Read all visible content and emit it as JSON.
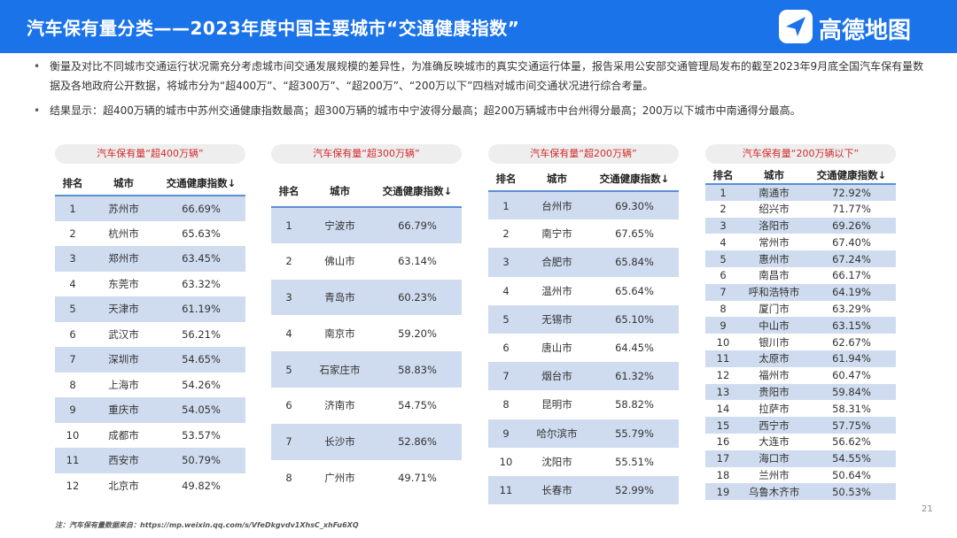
{
  "header": {
    "title": "汽车保有量分类——2023年度中国主要城市“交通健康指数”"
  },
  "logo": {
    "icon": "navigation-arrow-icon",
    "text": "高德地图"
  },
  "bullets": [
    "衡量及对比不同城市交通运行状况需充分考虑城市间交通发展规模的差异性，为准确反映城市的真实交通运行体量，报告采用公安部交通管理局发布的截至2023年9月底全国汽车保有量数据及各地政府公开数据，将城市分为“超400万”、“超300万”、“超200万”、“200万以下”四档对城市间交通状况进行综合考量。",
    "结果显示：超400万辆的城市中苏州交通健康指数最高；超300万辆的城市中宁波得分最高；超200万辆城市中台州得分最高；200万以下城市中南通得分最高。"
  ],
  "columns": {
    "rank": "排名",
    "city": "城市",
    "index": "交通健康指数↓"
  },
  "panels": [
    {
      "label": "汽车保有量“超400万辆”",
      "rows": [
        {
          "rank": "1",
          "city": "苏州市",
          "value": "66.69%"
        },
        {
          "rank": "2",
          "city": "杭州市",
          "value": "65.63%"
        },
        {
          "rank": "3",
          "city": "郑州市",
          "value": "63.45%"
        },
        {
          "rank": "4",
          "city": "东莞市",
          "value": "63.32%"
        },
        {
          "rank": "5",
          "city": "天津市",
          "value": "61.19%"
        },
        {
          "rank": "6",
          "city": "武汉市",
          "value": "56.21%"
        },
        {
          "rank": "7",
          "city": "深圳市",
          "value": "54.65%"
        },
        {
          "rank": "8",
          "city": "上海市",
          "value": "54.26%"
        },
        {
          "rank": "9",
          "city": "重庆市",
          "value": "54.05%"
        },
        {
          "rank": "10",
          "city": "成都市",
          "value": "53.57%"
        },
        {
          "rank": "11",
          "city": "西安市",
          "value": "50.79%"
        },
        {
          "rank": "12",
          "city": "北京市",
          "value": "49.82%"
        }
      ]
    },
    {
      "label": "汽车保有量“超300万辆”",
      "rows": [
        {
          "rank": "1",
          "city": "宁波市",
          "value": "66.79%"
        },
        {
          "rank": "2",
          "city": "佛山市",
          "value": "63.14%"
        },
        {
          "rank": "3",
          "city": "青岛市",
          "value": "60.23%"
        },
        {
          "rank": "4",
          "city": "南京市",
          "value": "59.20%"
        },
        {
          "rank": "5",
          "city": "石家庄市",
          "value": "58.83%"
        },
        {
          "rank": "6",
          "city": "济南市",
          "value": "54.75%"
        },
        {
          "rank": "7",
          "city": "长沙市",
          "value": "52.86%"
        },
        {
          "rank": "8",
          "city": "广州市",
          "value": "49.71%"
        }
      ]
    },
    {
      "label": "汽车保有量“超200万辆”",
      "rows": [
        {
          "rank": "1",
          "city": "台州市",
          "value": "69.30%"
        },
        {
          "rank": "2",
          "city": "南宁市",
          "value": "67.65%"
        },
        {
          "rank": "3",
          "city": "合肥市",
          "value": "65.84%"
        },
        {
          "rank": "4",
          "city": "温州市",
          "value": "65.64%"
        },
        {
          "rank": "5",
          "city": "无锡市",
          "value": "65.10%"
        },
        {
          "rank": "6",
          "city": "唐山市",
          "value": "64.45%"
        },
        {
          "rank": "7",
          "city": "烟台市",
          "value": "61.32%"
        },
        {
          "rank": "8",
          "city": "昆明市",
          "value": "58.82%"
        },
        {
          "rank": "9",
          "city": "哈尔滨市",
          "value": "55.79%"
        },
        {
          "rank": "10",
          "city": "沈阳市",
          "value": "55.51%"
        },
        {
          "rank": "11",
          "city": "长春市",
          "value": "52.99%"
        }
      ]
    },
    {
      "label": "汽车保有量“200万辆以下”",
      "rows": [
        {
          "rank": "1",
          "city": "南通市",
          "value": "72.92%"
        },
        {
          "rank": "2",
          "city": "绍兴市",
          "value": "71.77%"
        },
        {
          "rank": "3",
          "city": "洛阳市",
          "value": "69.26%"
        },
        {
          "rank": "4",
          "city": "常州市",
          "value": "67.40%"
        },
        {
          "rank": "5",
          "city": "惠州市",
          "value": "67.24%"
        },
        {
          "rank": "6",
          "city": "南昌市",
          "value": "66.17%"
        },
        {
          "rank": "7",
          "city": "呼和浩特市",
          "value": "64.19%"
        },
        {
          "rank": "8",
          "city": "厦门市",
          "value": "63.29%"
        },
        {
          "rank": "9",
          "city": "中山市",
          "value": "63.15%"
        },
        {
          "rank": "10",
          "city": "银川市",
          "value": "62.67%"
        },
        {
          "rank": "11",
          "city": "太原市",
          "value": "61.94%"
        },
        {
          "rank": "12",
          "city": "福州市",
          "value": "60.47%"
        },
        {
          "rank": "13",
          "city": "贵阳市",
          "value": "59.84%"
        },
        {
          "rank": "14",
          "city": "拉萨市",
          "value": "58.31%"
        },
        {
          "rank": "15",
          "city": "西宁市",
          "value": "57.75%"
        },
        {
          "rank": "16",
          "city": "大连市",
          "value": "56.62%"
        },
        {
          "rank": "17",
          "city": "海口市",
          "value": "54.55%"
        },
        {
          "rank": "18",
          "city": "兰州市",
          "value": "50.64%"
        },
        {
          "rank": "19",
          "city": "乌鲁木齐市",
          "value": "50.53%"
        }
      ]
    }
  ],
  "footnote": "注：汽车保有量数据来自：https://mp.weixin.qq.com/s/VfeDkgvdv1XhsC_xhFu6XQ",
  "page_number": "21",
  "colors": {
    "brand": "#1a73e8",
    "label_red": "#d22b2b",
    "row_band": "#cfdcef",
    "header_rule": "#5a8fd4"
  }
}
